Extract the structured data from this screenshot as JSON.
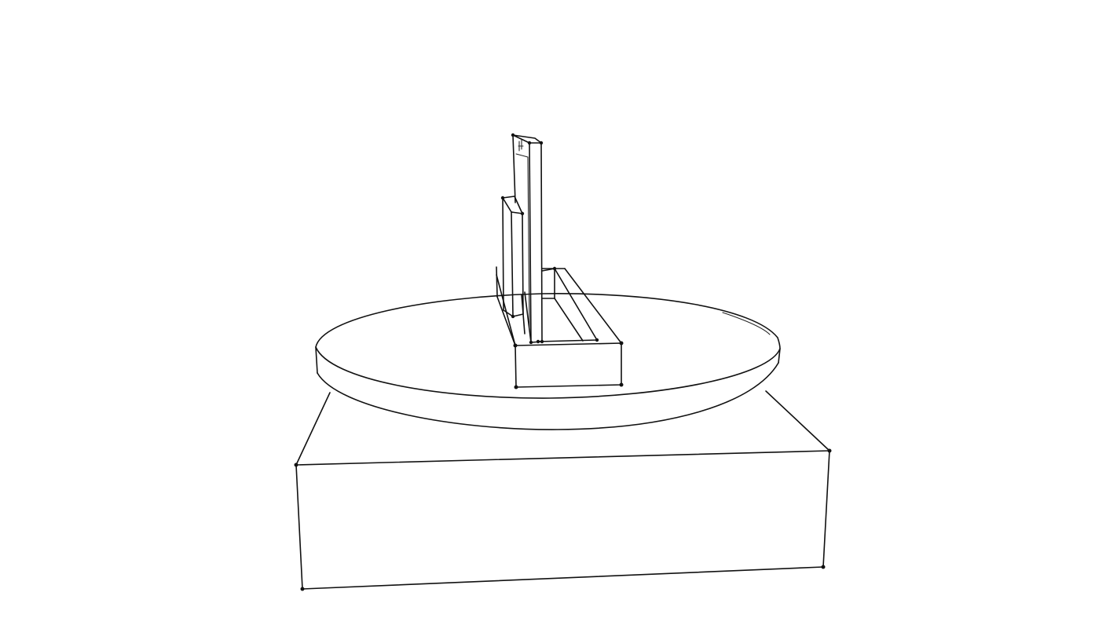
{
  "canvas": {
    "background_color": "#ffffff",
    "stroke_color": "#111111"
  },
  "drawing": {
    "parts": [
      {
        "name": "base-block",
        "description_icon": "box-outline"
      },
      {
        "name": "turntable-disc",
        "description_icon": "ellipse-outline"
      },
      {
        "name": "tray-box",
        "description_icon": "box-outline"
      },
      {
        "name": "tall-panel",
        "description_icon": "slab-outline"
      },
      {
        "name": "short-panel",
        "description_icon": "slab-outline"
      },
      {
        "name": "rail-bars",
        "description_icon": "rail-outline"
      }
    ]
  }
}
